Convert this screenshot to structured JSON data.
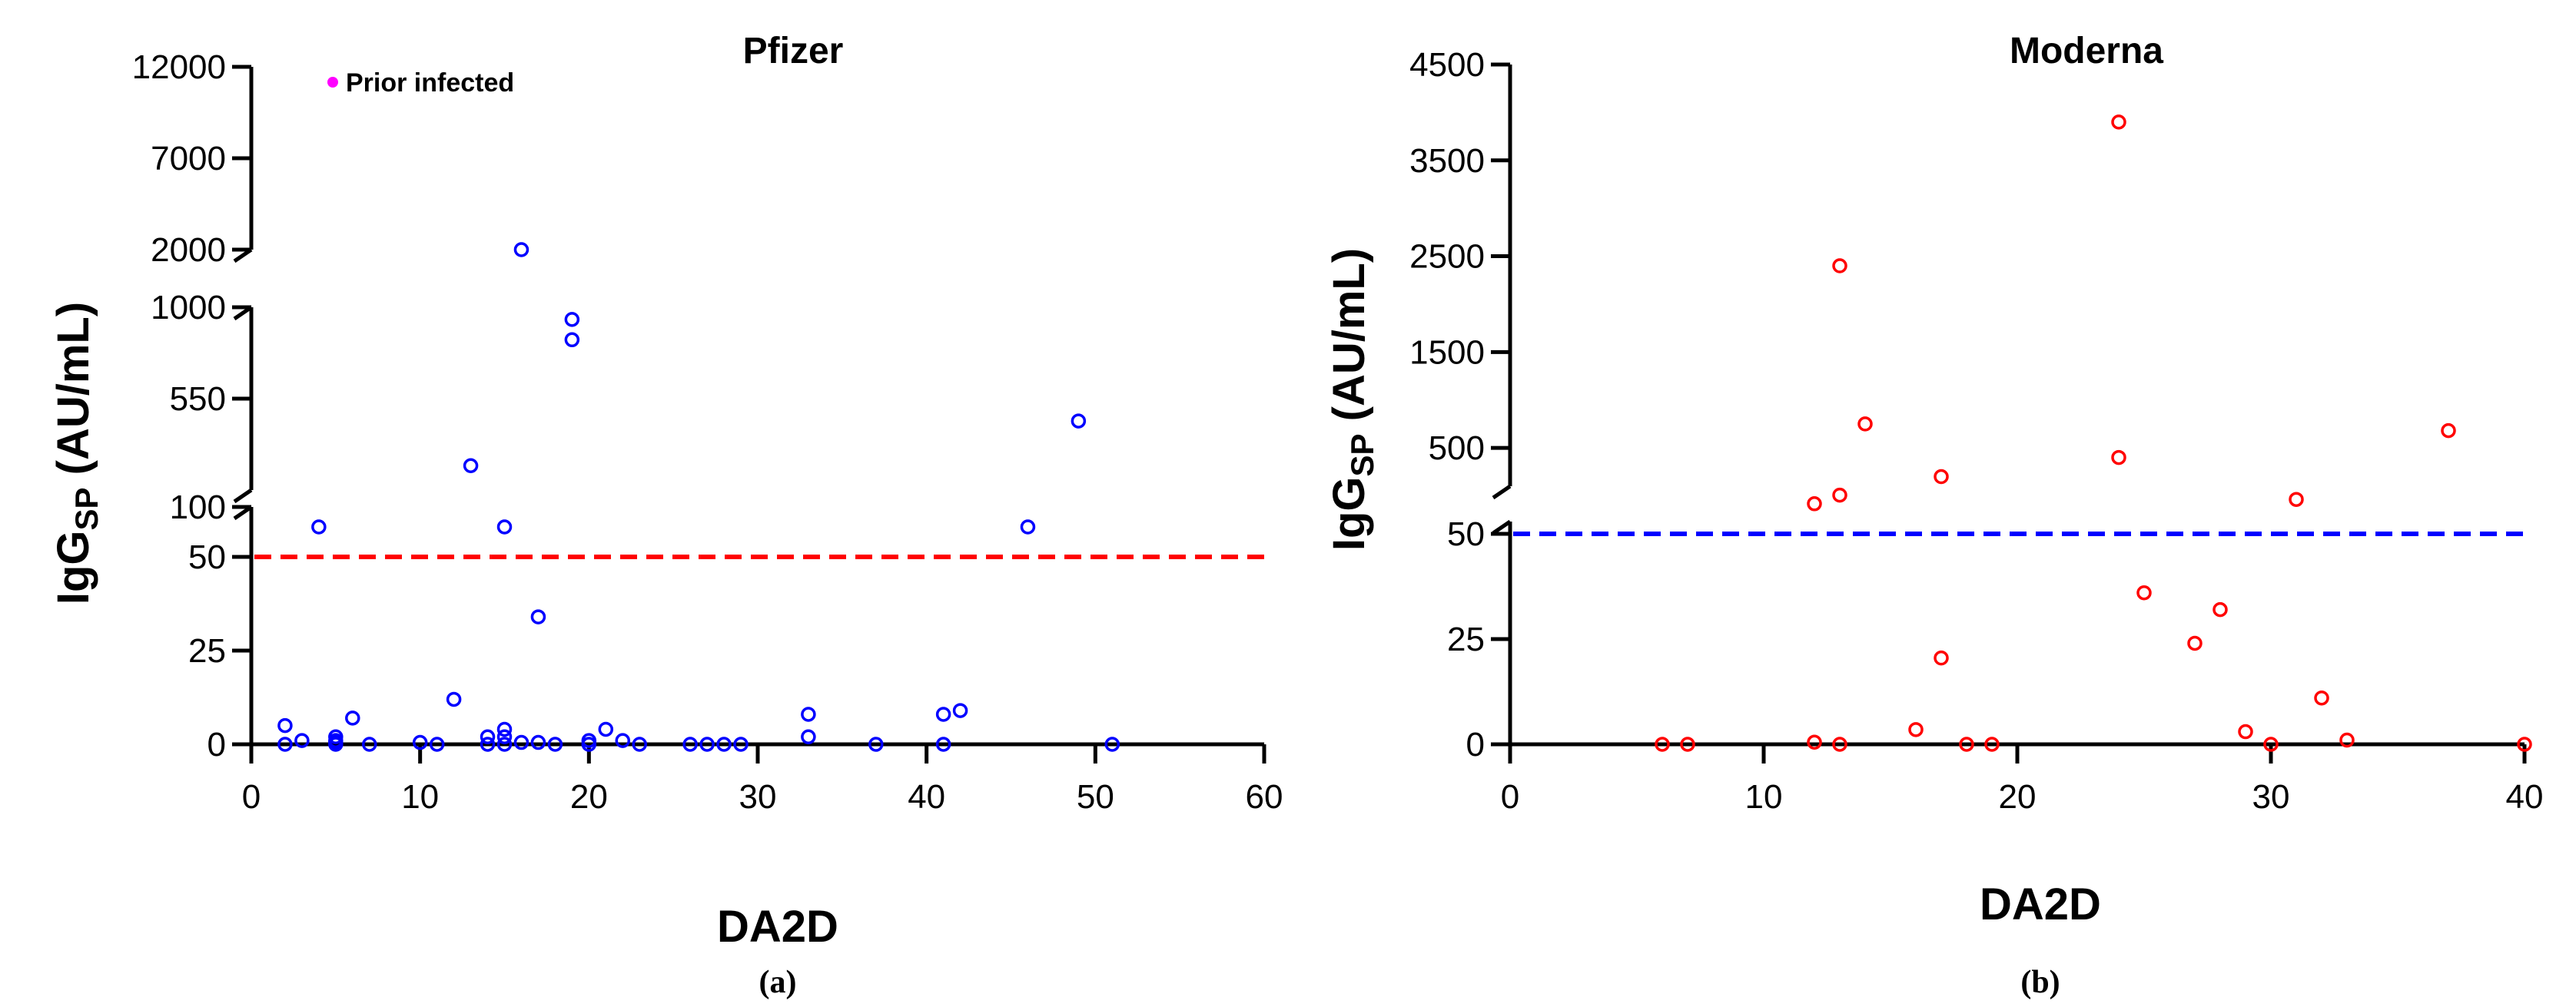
{
  "chart_data": [
    {
      "panel": "(a)",
      "type": "scatter",
      "title": "Pfizer",
      "xlabel": "DA2D",
      "ylabel": "IgG",
      "ylabel_sub": "SP",
      "ylabel_unit": " (AU/mL)",
      "xlim": [
        0,
        60
      ],
      "xticks": [
        0,
        10,
        20,
        30,
        40,
        50,
        60
      ],
      "y_segments": [
        {
          "range": [
            0,
            50
          ],
          "ticks": [
            0,
            25,
            50
          ]
        },
        {
          "range": [
            50,
            100
          ],
          "ticks": []
        },
        {
          "range": [
            100,
            1000
          ],
          "ticks": [
            100,
            550,
            1000
          ]
        },
        {
          "range": [
            2000,
            12000
          ],
          "ticks": [
            2000,
            7000,
            12000
          ]
        }
      ],
      "threshold": {
        "y": 50,
        "color": "#ff0000"
      },
      "point_color": "#0000ff",
      "legend": {
        "label": "Prior infected",
        "color": "#ff00ff",
        "placement": "top-left"
      },
      "points": [
        {
          "x": 2,
          "y": 5
        },
        {
          "x": 2,
          "y": 0
        },
        {
          "x": 3,
          "y": 1
        },
        {
          "x": 4,
          "y": 80
        },
        {
          "x": 5,
          "y": 0
        },
        {
          "x": 5,
          "y": 0.5
        },
        {
          "x": 5,
          "y": 1
        },
        {
          "x": 5,
          "y": 2
        },
        {
          "x": 6,
          "y": 7
        },
        {
          "x": 7,
          "y": 0
        },
        {
          "x": 10,
          "y": 0.5
        },
        {
          "x": 11,
          "y": 0
        },
        {
          "x": 12,
          "y": 12
        },
        {
          "x": 13,
          "y": 220
        },
        {
          "x": 14,
          "y": 0
        },
        {
          "x": 14,
          "y": 2
        },
        {
          "x": 15,
          "y": 0
        },
        {
          "x": 15,
          "y": 2
        },
        {
          "x": 15,
          "y": 4
        },
        {
          "x": 15,
          "y": 80
        },
        {
          "x": 16,
          "y": 0.5
        },
        {
          "x": 16,
          "y": 2000
        },
        {
          "x": 17,
          "y": 0.5
        },
        {
          "x": 17,
          "y": 34
        },
        {
          "x": 18,
          "y": 0
        },
        {
          "x": 19,
          "y": 940
        },
        {
          "x": 19,
          "y": 840
        },
        {
          "x": 20,
          "y": 0
        },
        {
          "x": 20,
          "y": 1
        },
        {
          "x": 21,
          "y": 4
        },
        {
          "x": 22,
          "y": 1
        },
        {
          "x": 23,
          "y": 0
        },
        {
          "x": 26,
          "y": 0
        },
        {
          "x": 27,
          "y": 0
        },
        {
          "x": 28,
          "y": 0
        },
        {
          "x": 29,
          "y": 0
        },
        {
          "x": 33,
          "y": 8
        },
        {
          "x": 33,
          "y": 2
        },
        {
          "x": 37,
          "y": 0
        },
        {
          "x": 41,
          "y": 8
        },
        {
          "x": 41,
          "y": 0
        },
        {
          "x": 42,
          "y": 9
        },
        {
          "x": 46,
          "y": 80
        },
        {
          "x": 49,
          "y": 440
        },
        {
          "x": 51,
          "y": 0
        }
      ]
    },
    {
      "panel": "(b)",
      "type": "scatter",
      "title": "Moderna",
      "xlabel": "DA2D",
      "ylabel": "IgG",
      "ylabel_sub": "SP",
      "ylabel_unit": " (AU/mL)",
      "xlim": [
        0,
        40
      ],
      "xticks": [
        0,
        10,
        20,
        30,
        40
      ],
      "y_segments": [
        {
          "range": [
            0,
            50
          ],
          "ticks": [
            0,
            25,
            50
          ]
        },
        {
          "range": [
            50,
            100
          ],
          "ticks": []
        },
        {
          "range": [
            100,
            4500
          ],
          "ticks": [
            500,
            1500,
            2500,
            3500,
            4500
          ]
        }
      ],
      "threshold": {
        "y": 50,
        "color": "#0000ff"
      },
      "point_color": "#ff0000",
      "points": [
        {
          "x": 6,
          "y": 0
        },
        {
          "x": 7,
          "y": 0
        },
        {
          "x": 12,
          "y": 0.5
        },
        {
          "x": 12,
          "y": 85
        },
        {
          "x": 13,
          "y": 0
        },
        {
          "x": 13,
          "y": 2400
        },
        {
          "x": 13,
          "y": 95
        },
        {
          "x": 14,
          "y": 750
        },
        {
          "x": 16,
          "y": 3.5
        },
        {
          "x": 17,
          "y": 20.5
        },
        {
          "x": 17,
          "y": 200
        },
        {
          "x": 18,
          "y": 0
        },
        {
          "x": 19,
          "y": 0
        },
        {
          "x": 24,
          "y": 3900
        },
        {
          "x": 24,
          "y": 400
        },
        {
          "x": 25,
          "y": 36
        },
        {
          "x": 27,
          "y": 24
        },
        {
          "x": 28,
          "y": 32
        },
        {
          "x": 29,
          "y": 3
        },
        {
          "x": 30,
          "y": 0
        },
        {
          "x": 31,
          "y": 90
        },
        {
          "x": 32,
          "y": 11
        },
        {
          "x": 33,
          "y": 1
        },
        {
          "x": 37,
          "y": 680
        },
        {
          "x": 40,
          "y": 0
        }
      ]
    }
  ]
}
